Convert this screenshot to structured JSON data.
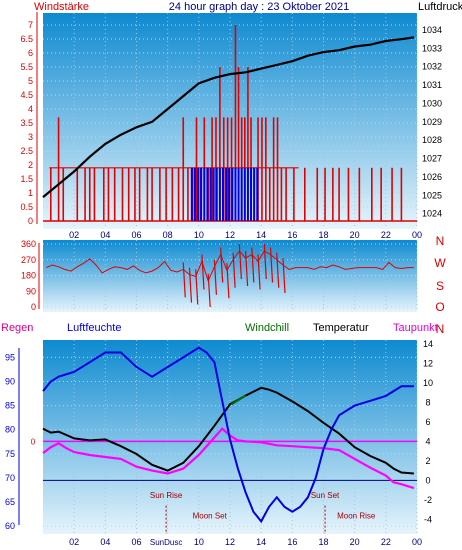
{
  "header": {
    "left_label": "Windstärke",
    "title": "24 hour graph day : 23 Oktober 2021",
    "right_label": "Luftdruck"
  },
  "colors": {
    "red": "#e00000",
    "blue": "#0000e0",
    "black": "#000000",
    "magenta": "#ff00ff",
    "green": "#007000",
    "navy": "#000080",
    "darkred": "#a00000",
    "sky_top": "#0e8ad0",
    "sky_bottom": "#e6f4fc"
  },
  "chart_data": [
    {
      "id": "wind-pressure",
      "type": "bar",
      "title": "24 hour graph day : 23 Oktober 2021",
      "ylabel_left": "Windstärke",
      "ylabel_right": "Luftdruck",
      "x_ticks": [
        "02",
        "04",
        "06",
        "08",
        "10",
        "12",
        "14",
        "16",
        "18",
        "20",
        "22",
        "00"
      ],
      "y_left_ticks": [
        "0",
        "0.5",
        "1",
        "1.5",
        "2",
        "2.5",
        "3",
        "3.5",
        "4",
        "4.5",
        "5",
        "5.5",
        "6",
        "6.5",
        "7"
      ],
      "y_left_lim": [
        0,
        7
      ],
      "y_right_ticks": [
        "1024",
        "1025",
        "1026",
        "1027",
        "1028",
        "1029",
        "1030",
        "1031",
        "1032",
        "1033",
        "1034"
      ],
      "y_right_lim": [
        1023.6,
        1034.6
      ],
      "x_lim_hours": [
        0,
        24
      ],
      "gust_bars": {
        "color": "red",
        "hours": [
          0.5,
          1.0,
          1.3,
          2.2,
          2.7,
          3.0,
          3.3,
          3.9,
          4.2,
          4.6,
          5.1,
          5.5,
          5.9,
          6.2,
          6.7,
          7.0,
          7.5,
          7.9,
          8.3,
          8.7,
          9.0,
          9.3,
          9.6,
          9.85,
          10.1,
          10.35,
          10.6,
          10.85,
          11.1,
          11.35,
          11.6,
          11.85,
          12.1,
          12.35,
          12.55,
          12.75,
          12.95,
          13.15,
          13.35,
          13.55,
          13.8,
          14.05,
          14.3,
          14.55,
          14.8,
          15.05,
          15.3,
          15.6,
          16.1,
          16.8,
          17.6,
          18.1,
          18.6,
          19.0,
          19.6,
          20.3,
          21.1,
          21.7,
          22.4,
          23.0
        ],
        "values": [
          1.9,
          3.7,
          1.9,
          1.9,
          1.9,
          1.9,
          1.9,
          1.9,
          1.9,
          1.9,
          1.9,
          1.9,
          1.9,
          1.9,
          1.9,
          1.9,
          1.9,
          1.9,
          1.9,
          1.9,
          3.7,
          1.9,
          1.9,
          3.7,
          1.9,
          3.7,
          1.9,
          3.7,
          3.7,
          5.5,
          3.7,
          3.7,
          3.7,
          7.0,
          5.5,
          3.7,
          3.7,
          5.5,
          3.7,
          1.9,
          3.7,
          3.7,
          3.7,
          1.9,
          3.7,
          3.7,
          1.9,
          1.9,
          1.9,
          1.9,
          1.9,
          1.9,
          1.9,
          1.9,
          1.9,
          1.9,
          1.9,
          1.9,
          1.9,
          1.9
        ]
      },
      "mean_wind_bars": {
        "color": "blue",
        "hours": [
          9.55,
          9.75,
          9.95,
          10.15,
          10.35,
          10.55,
          10.75,
          10.95,
          11.15,
          11.35,
          11.55,
          11.75,
          11.95,
          12.15,
          12.35,
          12.55,
          12.75,
          12.95,
          13.15,
          13.35,
          13.55,
          13.75
        ],
        "values": [
          1.9,
          1.9,
          1.9,
          1.9,
          1.9,
          1.9,
          1.9,
          1.9,
          1.9,
          1.9,
          1.9,
          1.9,
          1.9,
          1.9,
          1.9,
          1.9,
          1.9,
          1.9,
          1.9,
          1.9,
          1.9,
          1.9
        ]
      },
      "pressure_line": {
        "color": "black",
        "hours": [
          0,
          1,
          2,
          3,
          4,
          5,
          6,
          7,
          8,
          9,
          10,
          11,
          12,
          13,
          14,
          15,
          16,
          17,
          18,
          19,
          20,
          21,
          22,
          23,
          23.8
        ],
        "values": [
          1024.9,
          1025.6,
          1026.3,
          1027.1,
          1027.8,
          1028.3,
          1028.7,
          1029.0,
          1029.7,
          1030.4,
          1031.1,
          1031.4,
          1031.6,
          1031.7,
          1031.9,
          1032.1,
          1032.3,
          1032.6,
          1032.8,
          1032.9,
          1033.1,
          1033.2,
          1033.4,
          1033.5,
          1033.6
        ]
      }
    },
    {
      "id": "wind-direction",
      "type": "bar",
      "x_ticks": [
        "02",
        "04",
        "06",
        "08",
        "10",
        "12",
        "14",
        "16",
        "18",
        "20",
        "22",
        "00"
      ],
      "y_ticks": [
        "0",
        "90",
        "180",
        "270",
        "360"
      ],
      "y_lim": [
        0,
        360
      ],
      "compass_labels": [
        "N",
        "W",
        "S",
        "O",
        "N"
      ],
      "direction": {
        "color": "red",
        "hours": [
          0.2,
          0.6,
          1.0,
          1.4,
          1.8,
          2.2,
          2.6,
          3.0,
          3.4,
          3.8,
          4.2,
          4.6,
          5.0,
          5.4,
          5.8,
          6.2,
          6.6,
          7.0,
          7.4,
          7.8,
          8.2,
          8.6,
          9.0,
          9.4,
          9.8,
          10.2,
          10.6,
          11.0,
          11.4,
          11.8,
          12.2,
          12.6,
          13.0,
          13.4,
          13.8,
          14.2,
          14.6,
          15.0,
          15.4,
          15.8,
          16.2,
          16.6,
          17.0,
          17.4,
          17.8,
          18.2,
          18.6,
          19.0,
          19.4,
          19.8,
          20.2,
          20.6,
          21.0,
          21.4,
          21.8,
          22.2,
          22.6,
          23.0,
          23.4,
          23.8
        ],
        "values": [
          225,
          240,
          230,
          215,
          205,
          230,
          250,
          275,
          240,
          195,
          215,
          230,
          225,
          215,
          235,
          210,
          195,
          205,
          225,
          260,
          210,
          200,
          215,
          185,
          175,
          260,
          150,
          230,
          300,
          210,
          270,
          320,
          280,
          300,
          260,
          320,
          300,
          270,
          240,
          215,
          225,
          225,
          225,
          215,
          230,
          225,
          240,
          230,
          215,
          220,
          225,
          225,
          225,
          225,
          215,
          255,
          225,
          220,
          225,
          225
        ]
      }
    },
    {
      "id": "humidity-temperature",
      "type": "line",
      "legend": [
        "Regen",
        "Luftfeuchte",
        "Windchill",
        "Temperatur",
        "Taupunkt"
      ],
      "x_ticks": [
        "02",
        "04",
        "06",
        "08",
        "10",
        "12",
        "14",
        "16",
        "18",
        "20",
        "22",
        "00"
      ],
      "y_left_ticks": [
        "60",
        "65",
        "70",
        "75",
        "80",
        "85",
        "90",
        "95"
      ],
      "y_left_lim": [
        58.8,
        98.6
      ],
      "y_right_ticks": [
        "-4",
        "-2",
        "0",
        "2",
        "4",
        "6",
        "8",
        "10",
        "12",
        "14"
      ],
      "y_right_lim": [
        -5.3,
        14.4
      ],
      "rain_marker": "0",
      "annotations": [
        {
          "label": "Sun Rise",
          "hour": 7.9
        },
        {
          "label": "Moon Set",
          "hour": 10.7
        },
        {
          "label": "Sun Set",
          "hour": 18.1
        },
        {
          "label": "Moon Rise",
          "hour": 20.1
        },
        {
          "label": "SunDusc",
          "hour": 7.9
        }
      ],
      "luftfeuchte": {
        "color": "blue",
        "hours": [
          0,
          0.5,
          1.0,
          2.0,
          3.0,
          4.0,
          5.0,
          6.0,
          7.0,
          8.0,
          9.0,
          9.5,
          10.0,
          10.5,
          11.0,
          11.5,
          12.0,
          12.5,
          13.0,
          13.5,
          14.0,
          14.5,
          15.0,
          15.5,
          16.0,
          16.5,
          17.0,
          17.5,
          18.0,
          18.5,
          19.0,
          19.5,
          20.0,
          21.0,
          22.0,
          22.5,
          23.0,
          23.8
        ],
        "values": [
          88,
          90,
          91,
          92,
          94,
          96,
          96,
          93,
          91,
          93,
          95,
          96,
          97,
          96,
          94,
          86,
          78,
          72,
          67,
          63,
          61,
          64,
          66,
          64,
          63,
          64,
          66,
          70,
          76,
          80,
          83,
          84,
          85,
          86,
          87,
          88,
          89,
          89
        ]
      },
      "temperatur": {
        "color": "black",
        "hours": [
          0,
          0.5,
          1.0,
          2.0,
          3.0,
          4.0,
          5.0,
          6.0,
          7.0,
          8.0,
          9.0,
          10.0,
          11.0,
          12.0,
          13.0,
          14.0,
          14.5,
          15.0,
          16.0,
          17.0,
          18.0,
          19.0,
          20.0,
          21.0,
          22.0,
          22.5,
          23.0,
          23.8
        ],
        "values": [
          5.3,
          4.9,
          5.0,
          4.3,
          4.1,
          4.2,
          3.5,
          2.7,
          1.6,
          1.0,
          1.8,
          3.5,
          5.6,
          7.8,
          8.7,
          9.5,
          9.3,
          9.0,
          8.1,
          7.1,
          5.9,
          4.8,
          3.4,
          2.5,
          1.8,
          1.2,
          0.8,
          0.7
        ]
      },
      "windchill": {
        "color": "green",
        "hours": [
          12.1,
          12.4,
          12.7,
          13.0
        ],
        "values": [
          7.8,
          8.1,
          8.4,
          8.7
        ]
      },
      "taupunkt": {
        "color": "magenta",
        "hours": [
          0,
          0.5,
          1.0,
          1.5,
          2.0,
          3.0,
          4.0,
          5.0,
          5.5,
          6.0,
          7.0,
          8.0,
          9.0,
          10.0,
          11.0,
          11.5,
          12.0,
          12.5,
          13.0,
          14.0,
          15.0,
          16.0,
          17.0,
          18.0,
          19.0,
          20.0,
          21.0,
          22.0,
          22.5,
          23.0,
          23.8
        ],
        "values": [
          2.8,
          3.4,
          3.8,
          3.3,
          2.9,
          2.6,
          2.4,
          2.2,
          1.8,
          1.4,
          1.0,
          0.7,
          1.2,
          2.6,
          4.4,
          5.3,
          4.6,
          4.1,
          4.0,
          3.9,
          3.6,
          3.5,
          3.4,
          3.3,
          3.1,
          2.2,
          1.3,
          0.5,
          -0.2,
          -0.4,
          -0.8
        ]
      }
    }
  ]
}
